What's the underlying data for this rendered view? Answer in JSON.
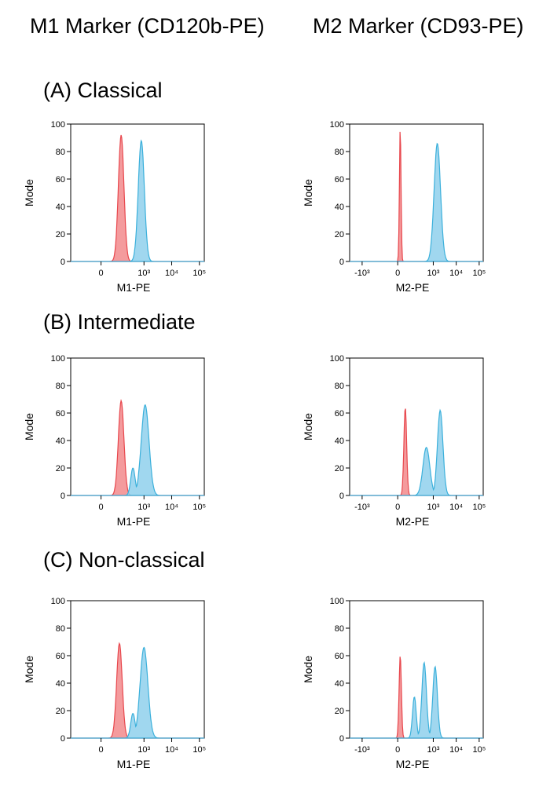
{
  "column_titles": [
    "M1 Marker (CD120b-PE)",
    "M2 Marker (CD93-PE)"
  ],
  "row_titles": [
    "(A) Classical",
    "(B) Intermediate",
    "(C) Non-classical"
  ],
  "colors": {
    "control": "#e8474d",
    "control_fill": "#f28a8c",
    "marker": "#3bb0db",
    "marker_fill": "#8fd0ec"
  },
  "chart_data": [
    {
      "type": "area",
      "panel": "A-M1",
      "xlabel": "M1-PE",
      "ylabel": "Mode",
      "ylim": [
        0,
        100
      ],
      "x_scale": "biexponential",
      "x_ticks": [
        "0",
        "10³",
        "10⁴",
        "10⁵"
      ],
      "y_ticks": [
        "0",
        "20",
        "40",
        "60",
        "80",
        "100"
      ],
      "series": [
        {
          "role": "control",
          "peaks": [
            {
              "x": 150,
              "height": 92,
              "width": 0.1
            }
          ]
        },
        {
          "role": "marker",
          "peaks": [
            {
              "x": 800,
              "height": 88,
              "width": 0.11
            }
          ]
        }
      ]
    },
    {
      "type": "area",
      "panel": "A-M2",
      "xlabel": "M2-PE",
      "ylabel": "Mode",
      "ylim": [
        0,
        100
      ],
      "x_scale": "biexponential",
      "x_ticks": [
        "-10³",
        "0",
        "10³",
        "10⁴",
        "10⁵"
      ],
      "y_ticks": [
        "0",
        "20",
        "40",
        "60",
        "80",
        "100"
      ],
      "series": [
        {
          "role": "control",
          "peaks": [
            {
              "x": 20,
              "height": 97,
              "width": 0.035
            }
          ]
        },
        {
          "role": "marker",
          "peaks": [
            {
              "x": 1500,
              "height": 86,
              "width": 0.14
            }
          ]
        }
      ]
    },
    {
      "type": "area",
      "panel": "B-M1",
      "xlabel": "M1-PE",
      "ylabel": "Mode",
      "ylim": [
        0,
        100
      ],
      "x_scale": "biexponential",
      "x_ticks": [
        "0",
        "10³",
        "10⁴",
        "10⁵"
      ],
      "y_ticks": [
        "0",
        "20",
        "40",
        "60",
        "80",
        "100"
      ],
      "series": [
        {
          "role": "control",
          "peaks": [
            {
              "x": 150,
              "height": 69,
              "width": 0.1
            }
          ]
        },
        {
          "role": "marker",
          "peaks": [
            {
              "x": 1100,
              "height": 66,
              "width": 0.14
            },
            {
              "x": 400,
              "height": 20,
              "width": 0.08
            }
          ]
        }
      ]
    },
    {
      "type": "area",
      "panel": "B-M2",
      "xlabel": "M2-PE",
      "ylabel": "Mode",
      "ylim": [
        0,
        100
      ],
      "x_scale": "biexponential",
      "x_ticks": [
        "-10³",
        "0",
        "10³",
        "10⁴",
        "10⁵"
      ],
      "y_ticks": [
        "0",
        "20",
        "40",
        "60",
        "80",
        "100"
      ],
      "series": [
        {
          "role": "control",
          "peaks": [
            {
              "x": 60,
              "height": 64,
              "width": 0.06
            }
          ]
        },
        {
          "role": "marker",
          "peaks": [
            {
              "x": 2000,
              "height": 62,
              "width": 0.12
            },
            {
              "x": 500,
              "height": 35,
              "width": 0.15
            }
          ]
        }
      ]
    },
    {
      "type": "area",
      "panel": "C-M1",
      "xlabel": "M1-PE",
      "ylabel": "Mode",
      "ylim": [
        0,
        100
      ],
      "x_scale": "biexponential",
      "x_ticks": [
        "0",
        "10³",
        "10⁴",
        "10⁵"
      ],
      "y_ticks": [
        "0",
        "20",
        "40",
        "60",
        "80",
        "100"
      ],
      "series": [
        {
          "role": "control",
          "peaks": [
            {
              "x": 130,
              "height": 69,
              "width": 0.1
            }
          ]
        },
        {
          "role": "marker",
          "peaks": [
            {
              "x": 1000,
              "height": 66,
              "width": 0.14
            },
            {
              "x": 400,
              "height": 18,
              "width": 0.08
            }
          ]
        }
      ]
    },
    {
      "type": "area",
      "panel": "C-M2",
      "xlabel": "M2-PE",
      "ylabel": "Mode",
      "ylim": [
        0,
        100
      ],
      "x_scale": "biexponential",
      "x_ticks": [
        "-10³",
        "0",
        "10³",
        "10⁴",
        "10⁵"
      ],
      "y_ticks": [
        "0",
        "20",
        "40",
        "60",
        "80",
        "100"
      ],
      "series": [
        {
          "role": "control",
          "peaks": [
            {
              "x": 20,
              "height": 60,
              "width": 0.05
            }
          ]
        },
        {
          "role": "marker",
          "peaks": [
            {
              "x": 400,
              "height": 55,
              "width": 0.1
            },
            {
              "x": 1200,
              "height": 52,
              "width": 0.1
            },
            {
              "x": 150,
              "height": 30,
              "width": 0.08
            }
          ]
        }
      ]
    }
  ]
}
